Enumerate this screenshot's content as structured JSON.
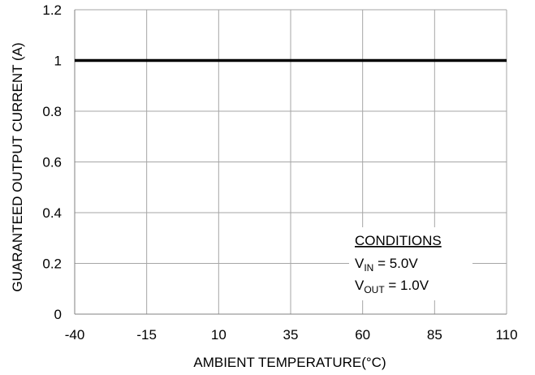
{
  "chart_data": {
    "type": "line",
    "title": "",
    "xlabel": "AMBIENT TEMPERATURE(°C)",
    "ylabel": "GUARANTEED OUTPUT CURRENT (A)",
    "xlim": [
      -40,
      110
    ],
    "ylim": [
      0,
      1.2
    ],
    "x_ticks": [
      -40,
      -15,
      10,
      35,
      60,
      85,
      110
    ],
    "x_tick_labels": [
      "-40",
      "-15",
      "10",
      "35",
      "60",
      "85",
      "110"
    ],
    "y_ticks": [
      0,
      0.2,
      0.4,
      0.6,
      0.8,
      1,
      1.2
    ],
    "y_tick_labels": [
      "0",
      "0.2",
      "0.4",
      "0.6",
      "0.8",
      "1",
      "1.2"
    ],
    "grid": true,
    "series": [
      {
        "x": [
          -40,
          110
        ],
        "y": [
          1,
          1
        ],
        "color": "#000000"
      }
    ],
    "annotation": {
      "heading": "CONDITIONS",
      "line1_main": "V",
      "line1_sub": "IN",
      "line1_rest": " = 5.0V",
      "line2_main": "V",
      "line2_sub": "OUT",
      "line2_rest": " = 1.0V"
    }
  }
}
